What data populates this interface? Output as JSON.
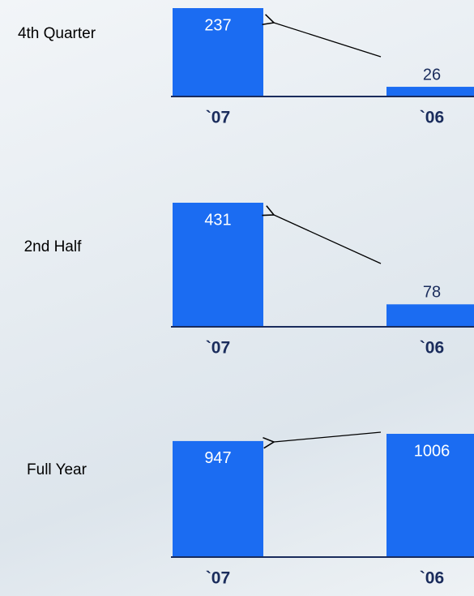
{
  "chart_data": [
    {
      "type": "bar",
      "title": "4th Quarter",
      "categories": [
        "`07",
        "`06"
      ],
      "values": [
        237,
        26
      ],
      "color": "#1b6cf2"
    },
    {
      "type": "bar",
      "title": "2nd Half",
      "categories": [
        "`07",
        "`06"
      ],
      "values": [
        431,
        78
      ],
      "color": "#1b6cf2"
    },
    {
      "type": "bar",
      "title": "Full Year",
      "categories": [
        "`07",
        "`06"
      ],
      "values": [
        947,
        1006
      ],
      "color": "#1b6cf2"
    }
  ]
}
